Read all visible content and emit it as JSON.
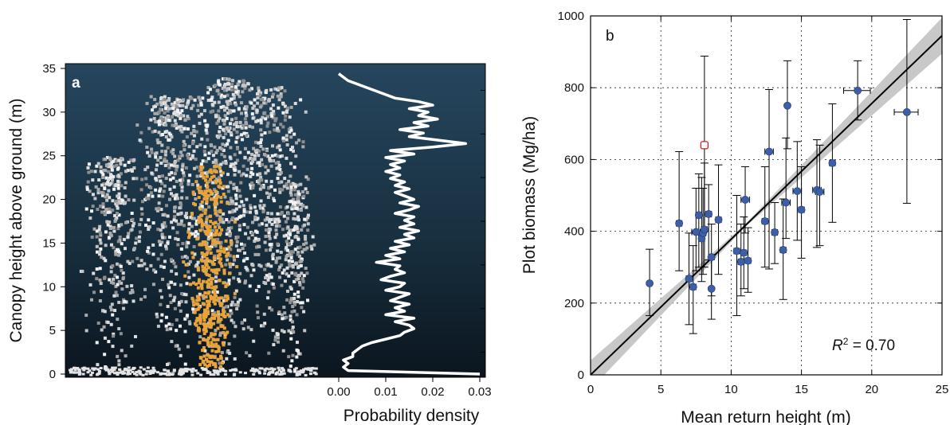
{
  "chart_data": [
    {
      "panel": "a",
      "type": "scatter",
      "ylabel": "Canopy height above ground (m)",
      "ylim": [
        0,
        35
      ],
      "yticks": [
        "0",
        "5",
        "10",
        "15",
        "20",
        "25",
        "30",
        "35"
      ],
      "background": "dark gradient (#26465e to #0c1620)",
      "point_colors": {
        "canopy": "#d2d2d2",
        "highlighted_tree": "#e8a33a"
      },
      "inset": {
        "type": "line",
        "xlabel": "Probability density",
        "xlim": [
          0,
          0.03
        ],
        "xticks": [
          "0.00",
          "0.01",
          "0.02",
          "0.03"
        ],
        "line_color": "#ffffff",
        "profile": [
          [
            0.03,
            0
          ],
          [
            0.002,
            0.4
          ],
          [
            0.001,
            0.8
          ],
          [
            0.002,
            1.2
          ],
          [
            0.001,
            1.6
          ],
          [
            0.003,
            2.0
          ],
          [
            0.003,
            2.4
          ],
          [
            0.004,
            2.8
          ],
          [
            0.005,
            3.2
          ],
          [
            0.007,
            3.6
          ],
          [
            0.01,
            4.0
          ],
          [
            0.013,
            4.4
          ],
          [
            0.014,
            4.8
          ],
          [
            0.016,
            5.2
          ],
          [
            0.015,
            5.6
          ],
          [
            0.012,
            6.0
          ],
          [
            0.016,
            6.4
          ],
          [
            0.01,
            6.8
          ],
          [
            0.014,
            7.2
          ],
          [
            0.012,
            7.6
          ],
          [
            0.015,
            8.0
          ],
          [
            0.011,
            8.4
          ],
          [
            0.013,
            8.8
          ],
          [
            0.015,
            9.2
          ],
          [
            0.01,
            9.6
          ],
          [
            0.013,
            10.0
          ],
          [
            0.014,
            10.4
          ],
          [
            0.009,
            10.8
          ],
          [
            0.011,
            11.2
          ],
          [
            0.014,
            11.6
          ],
          [
            0.012,
            12.0
          ],
          [
            0.013,
            12.4
          ],
          [
            0.008,
            12.8
          ],
          [
            0.013,
            13.2
          ],
          [
            0.01,
            13.6
          ],
          [
            0.014,
            14.0
          ],
          [
            0.011,
            14.4
          ],
          [
            0.015,
            14.8
          ],
          [
            0.012,
            15.2
          ],
          [
            0.016,
            15.6
          ],
          [
            0.014,
            16.0
          ],
          [
            0.017,
            16.4
          ],
          [
            0.013,
            16.8
          ],
          [
            0.016,
            17.2
          ],
          [
            0.014,
            17.6
          ],
          [
            0.016,
            18.0
          ],
          [
            0.012,
            18.4
          ],
          [
            0.015,
            18.8
          ],
          [
            0.017,
            19.2
          ],
          [
            0.013,
            19.6
          ],
          [
            0.016,
            20.0
          ],
          [
            0.014,
            20.4
          ],
          [
            0.012,
            20.8
          ],
          [
            0.015,
            21.2
          ],
          [
            0.012,
            21.6
          ],
          [
            0.014,
            22.0
          ],
          [
            0.011,
            22.4
          ],
          [
            0.013,
            22.8
          ],
          [
            0.01,
            23.2
          ],
          [
            0.013,
            23.6
          ],
          [
            0.011,
            24.0
          ],
          [
            0.014,
            24.4
          ],
          [
            0.01,
            24.8
          ],
          [
            0.016,
            25.2
          ],
          [
            0.011,
            25.6
          ],
          [
            0.02,
            26.0
          ],
          [
            0.027,
            26.4
          ],
          [
            0.021,
            26.8
          ],
          [
            0.015,
            27.2
          ],
          [
            0.018,
            27.6
          ],
          [
            0.013,
            28.0
          ],
          [
            0.019,
            28.4
          ],
          [
            0.016,
            28.8
          ],
          [
            0.021,
            29.2
          ],
          [
            0.017,
            29.6
          ],
          [
            0.019,
            30.0
          ],
          [
            0.015,
            30.4
          ],
          [
            0.02,
            30.8
          ],
          [
            0.017,
            31.2
          ],
          [
            0.012,
            31.6
          ],
          [
            0.01,
            32.0
          ],
          [
            0.008,
            32.4
          ],
          [
            0.006,
            32.8
          ],
          [
            0.004,
            33.2
          ],
          [
            0.002,
            33.6
          ],
          [
            0.001,
            34.0
          ],
          [
            0.0,
            34.4
          ]
        ]
      }
    },
    {
      "panel": "b",
      "type": "scatter",
      "xlabel": "Mean return height (m)",
      "ylabel": "Plot biomass (Mg/ha)",
      "xlim": [
        0,
        25
      ],
      "ylim": [
        0,
        1000
      ],
      "xticks": [
        "0",
        "5",
        "10",
        "15",
        "20",
        "25"
      ],
      "yticks": [
        "0",
        "200",
        "400",
        "600",
        "800",
        "1000"
      ],
      "grid": true,
      "annotation": {
        "r2_label": "R",
        "r2_sup": "2",
        "r2_value": " = 0.70"
      },
      "point_color": "#3d5fa6",
      "outlier_color": "#cc2222",
      "fit_line": {
        "intercept": 0,
        "slope": 37.8,
        "ci_band_color": "#c8c8c8"
      },
      "points": [
        {
          "x": 4.2,
          "y": 255,
          "ylow": 165,
          "yhigh": 350,
          "xlow": 4.2,
          "xhigh": 4.2
        },
        {
          "x": 6.3,
          "y": 422,
          "ylow": 290,
          "yhigh": 622,
          "xlow": 6.1,
          "xhigh": 6.5
        },
        {
          "x": 7.0,
          "y": 268,
          "ylow": 140,
          "yhigh": 395,
          "xlow": 6.8,
          "xhigh": 7.2
        },
        {
          "x": 7.3,
          "y": 245,
          "ylow": 115,
          "yhigh": 360,
          "xlow": 7.1,
          "xhigh": 7.5
        },
        {
          "x": 7.5,
          "y": 398,
          "ylow": 290,
          "yhigh": 520,
          "xlow": 7.2,
          "xhigh": 7.8
        },
        {
          "x": 7.7,
          "y": 445,
          "ylow": 300,
          "yhigh": 560,
          "xlow": 7.5,
          "xhigh": 7.9
        },
        {
          "x": 7.9,
          "y": 380,
          "ylow": 260,
          "yhigh": 550,
          "xlow": 7.7,
          "xhigh": 8.1
        },
        {
          "x": 8.0,
          "y": 395,
          "ylow": 280,
          "yhigh": 520,
          "xlow": 7.8,
          "xhigh": 8.2
        },
        {
          "x": 8.1,
          "y": 405,
          "ylow": 300,
          "yhigh": 590,
          "xlow": 7.9,
          "xhigh": 8.3
        },
        {
          "x": 8.4,
          "y": 448,
          "ylow": 320,
          "yhigh": 530,
          "xlow": 8.2,
          "xhigh": 8.6
        },
        {
          "x": 8.6,
          "y": 328,
          "ylow": 220,
          "yhigh": 420,
          "xlow": 8.4,
          "xhigh": 8.8
        },
        {
          "x": 8.6,
          "y": 240,
          "ylow": 155,
          "yhigh": 330,
          "xlow": 8.5,
          "xhigh": 8.7
        },
        {
          "x": 9.1,
          "y": 432,
          "ylow": 280,
          "yhigh": 585,
          "xlow": 8.9,
          "xhigh": 9.3
        },
        {
          "x": 10.4,
          "y": 345,
          "ylow": 165,
          "yhigh": 500,
          "xlow": 10.2,
          "xhigh": 10.6
        },
        {
          "x": 10.7,
          "y": 315,
          "ylow": 220,
          "yhigh": 420,
          "xlow": 10.5,
          "xhigh": 10.9
        },
        {
          "x": 10.9,
          "y": 340,
          "ylow": 240,
          "yhigh": 440,
          "xlow": 10.7,
          "xhigh": 11.1
        },
        {
          "x": 11.0,
          "y": 488,
          "ylow": 395,
          "yhigh": 580,
          "xlow": 10.7,
          "xhigh": 11.3
        },
        {
          "x": 11.2,
          "y": 318,
          "ylow": 230,
          "yhigh": 410,
          "xlow": 11.0,
          "xhigh": 11.4
        },
        {
          "x": 12.4,
          "y": 428,
          "ylow": 300,
          "yhigh": 580,
          "xlow": 12.2,
          "xhigh": 12.6
        },
        {
          "x": 12.7,
          "y": 622,
          "ylow": 295,
          "yhigh": 795,
          "xlow": 12.4,
          "xhigh": 13.0
        },
        {
          "x": 13.1,
          "y": 397,
          "ylow": 310,
          "yhigh": 480,
          "xlow": 12.9,
          "xhigh": 13.3
        },
        {
          "x": 13.7,
          "y": 348,
          "ylow": 210,
          "yhigh": 490,
          "xlow": 13.5,
          "xhigh": 13.9
        },
        {
          "x": 13.9,
          "y": 480,
          "ylow": 380,
          "yhigh": 660,
          "xlow": 13.6,
          "xhigh": 14.2
        },
        {
          "x": 14.0,
          "y": 750,
          "ylow": 630,
          "yhigh": 875,
          "xlow": 14.0,
          "xhigh": 14.0
        },
        {
          "x": 14.7,
          "y": 512,
          "ylow": 375,
          "yhigh": 650,
          "xlow": 14.4,
          "xhigh": 15.0
        },
        {
          "x": 15.0,
          "y": 460,
          "ylow": 325,
          "yhigh": 580,
          "xlow": 14.8,
          "xhigh": 15.2
        },
        {
          "x": 16.1,
          "y": 515,
          "ylow": 355,
          "yhigh": 655,
          "xlow": 15.8,
          "xhigh": 16.4
        },
        {
          "x": 16.3,
          "y": 510,
          "ylow": 360,
          "yhigh": 640,
          "xlow": 16.0,
          "xhigh": 16.6
        },
        {
          "x": 17.2,
          "y": 590,
          "ylow": 425,
          "yhigh": 755,
          "xlow": 17.0,
          "xhigh": 17.4
        },
        {
          "x": 19.0,
          "y": 792,
          "ylow": 710,
          "yhigh": 875,
          "xlow": 18.0,
          "xhigh": 19.9
        },
        {
          "x": 22.5,
          "y": 732,
          "ylow": 478,
          "yhigh": 990,
          "xlow": 21.6,
          "xhigh": 23.3
        }
      ],
      "outlier": {
        "x": 8.1,
        "y": 640,
        "ylow": 400,
        "yhigh": 888
      }
    }
  ]
}
